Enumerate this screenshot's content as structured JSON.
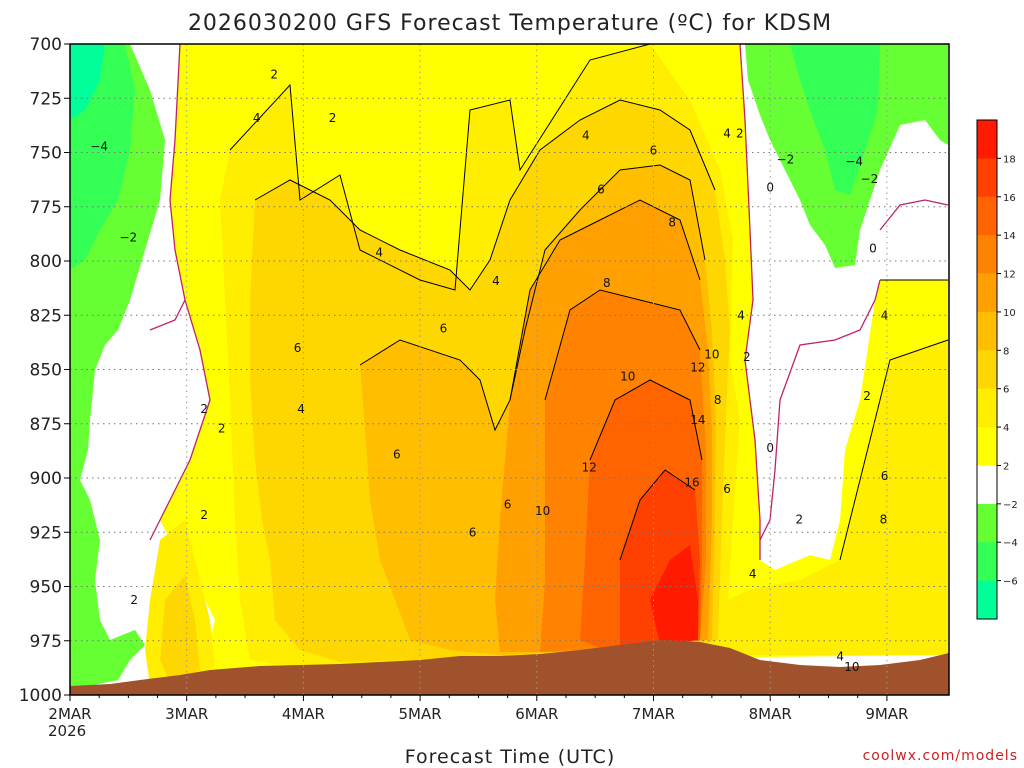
{
  "chart_data": {
    "type": "heatmap",
    "title": "2026030200 GFS Forecast Temperature (ºC) for KDSM",
    "xlabel": "Forecast Time (UTC)",
    "ylabel": "",
    "credit": "coolwx.com/models",
    "x_tick_labels": [
      "2MAR",
      "3MAR",
      "4MAR",
      "5MAR",
      "6MAR",
      "7MAR",
      "8MAR",
      "9MAR"
    ],
    "x_start_year_label": "2026",
    "y_tick_labels": [
      "700",
      "725",
      "750",
      "775",
      "800",
      "825",
      "850",
      "875",
      "900",
      "925",
      "950",
      "975",
      "1000"
    ],
    "y_axis_pressure_hpa": [
      700,
      1000
    ],
    "colorbar_labels": [
      "18",
      "16",
      "14",
      "12",
      "10",
      "8",
      "6",
      "4",
      "2",
      "−2",
      "−4",
      "−6"
    ],
    "colorbar_colors": [
      "#ff1a00",
      "#ff4000",
      "#ff6400",
      "#ff8200",
      "#ffa000",
      "#ffbf00",
      "#ffd700",
      "#ffee00",
      "#ffff00",
      "#ffffff",
      "#66ff33",
      "#33ff55",
      "#00ff99"
    ],
    "colors": {
      "terrain": "#a0522d",
      "zero_contour": "#c0206a",
      "grid": "#999999"
    },
    "contour_labels": [
      {
        "text": "2",
        "t": 1.75,
        "p": 716
      },
      {
        "text": "2",
        "t": 2.25,
        "p": 736
      },
      {
        "text": "4",
        "t": 1.6,
        "p": 736
      },
      {
        "text": "−4",
        "t": 0.25,
        "p": 749
      },
      {
        "text": "−2",
        "t": 0.5,
        "p": 791
      },
      {
        "text": "4",
        "t": 2.65,
        "p": 798
      },
      {
        "text": "6",
        "t": 1.95,
        "p": 842
      },
      {
        "text": "6",
        "t": 3.2,
        "p": 833
      },
      {
        "text": "4",
        "t": 3.65,
        "p": 811
      },
      {
        "text": "2",
        "t": 1.15,
        "p": 870
      },
      {
        "text": "2",
        "t": 1.3,
        "p": 879
      },
      {
        "text": "4",
        "t": 1.98,
        "p": 870
      },
      {
        "text": "6",
        "t": 2.8,
        "p": 891
      },
      {
        "text": "6",
        "t": 3.75,
        "p": 914
      },
      {
        "text": "6",
        "t": 3.45,
        "p": 927
      },
      {
        "text": "10",
        "t": 4.05,
        "p": 917
      },
      {
        "text": "12",
        "t": 4.45,
        "p": 897
      },
      {
        "text": "4",
        "t": 4.42,
        "p": 744
      },
      {
        "text": "6",
        "t": 5.0,
        "p": 751
      },
      {
        "text": "6",
        "t": 4.55,
        "p": 769
      },
      {
        "text": "8",
        "t": 5.16,
        "p": 784
      },
      {
        "text": "8",
        "t": 4.6,
        "p": 812
      },
      {
        "text": "10",
        "t": 4.78,
        "p": 855
      },
      {
        "text": "12",
        "t": 5.38,
        "p": 851
      },
      {
        "text": "10",
        "t": 5.5,
        "p": 845
      },
      {
        "text": "14",
        "t": 5.38,
        "p": 875
      },
      {
        "text": "16",
        "t": 5.33,
        "p": 904
      },
      {
        "text": "8",
        "t": 5.55,
        "p": 866
      },
      {
        "text": "6",
        "t": 5.63,
        "p": 907
      },
      {
        "text": "4",
        "t": 5.63,
        "p": 743
      },
      {
        "text": "2",
        "t": 5.74,
        "p": 743
      },
      {
        "text": "4",
        "t": 5.75,
        "p": 827
      },
      {
        "text": "2",
        "t": 5.8,
        "p": 846
      },
      {
        "text": "0",
        "t": 6.0,
        "p": 768
      },
      {
        "text": "−2",
        "t": 6.13,
        "p": 755
      },
      {
        "text": "0",
        "t": 6.0,
        "p": 888
      },
      {
        "text": "2",
        "t": 6.25,
        "p": 921
      },
      {
        "text": "4",
        "t": 5.85,
        "p": 946
      },
      {
        "text": "−4",
        "t": 6.72,
        "p": 756
      },
      {
        "text": "−2",
        "t": 6.85,
        "p": 764
      },
      {
        "text": "0",
        "t": 6.88,
        "p": 796
      },
      {
        "text": "4",
        "t": 6.98,
        "p": 827
      },
      {
        "text": "2",
        "t": 6.83,
        "p": 864
      },
      {
        "text": "6",
        "t": 6.98,
        "p": 901
      },
      {
        "text": "8",
        "t": 6.97,
        "p": 921
      },
      {
        "text": "4",
        "t": 6.6,
        "p": 984
      },
      {
        "text": "10",
        "t": 6.7,
        "p": 989
      },
      {
        "text": "2",
        "t": 1.15,
        "p": 919
      },
      {
        "text": "2",
        "t": 0.55,
        "p": 958
      }
    ]
  }
}
